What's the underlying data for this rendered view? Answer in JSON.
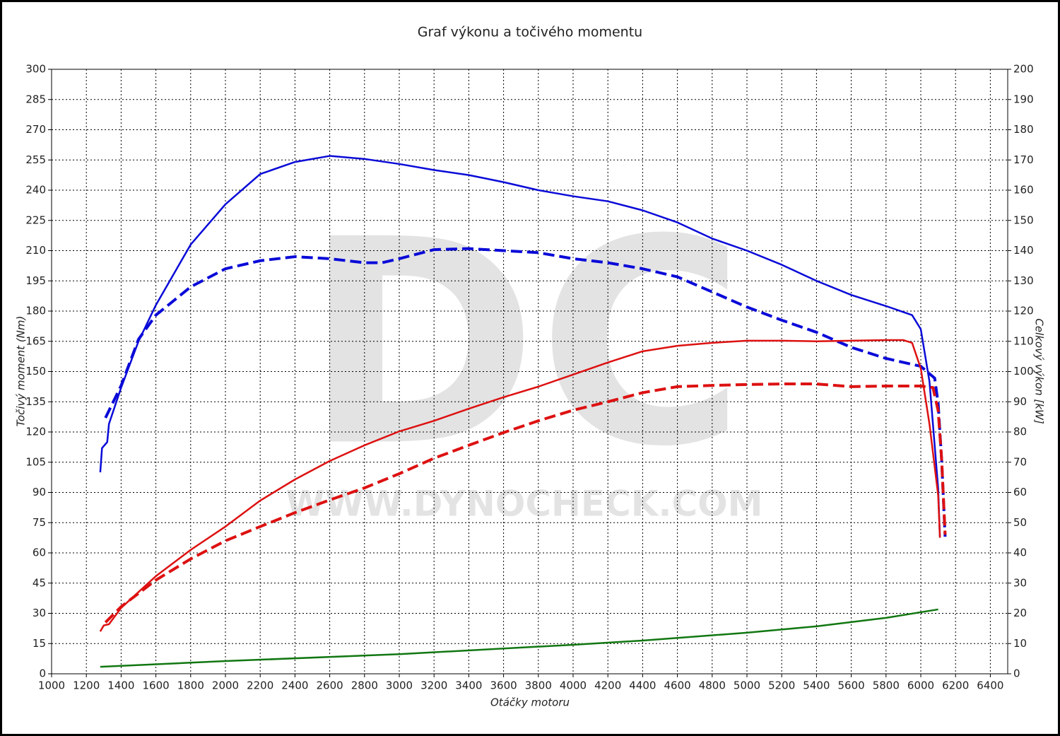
{
  "chart_data": {
    "type": "line",
    "title": "Graf výkonu a točivého momentu",
    "x_label": "Otáčky motoru",
    "y_label": "Točivý moment (Nm)",
    "y2_label": "Celkový výkon [kW]",
    "watermark": "DC",
    "watermark_url": "WWW.DYNOCHECK.COM",
    "xlim": [
      1000,
      6500
    ],
    "xticks": [
      1000,
      1200,
      1400,
      1600,
      1800,
      2000,
      2200,
      2400,
      2600,
      2800,
      3000,
      3200,
      3400,
      3600,
      3800,
      4000,
      4200,
      4400,
      4600,
      4800,
      5000,
      5200,
      5400,
      5600,
      5800,
      6000,
      6200,
      6400
    ],
    "ylim": [
      0,
      300
    ],
    "yticks": [
      0,
      15,
      30,
      45,
      60,
      75,
      90,
      105,
      120,
      135,
      150,
      165,
      180,
      195,
      210,
      225,
      240,
      255,
      270,
      285,
      300
    ],
    "y2lim": [
      0,
      200
    ],
    "y2ticks": [
      0,
      10,
      20,
      30,
      40,
      50,
      60,
      70,
      80,
      90,
      100,
      110,
      120,
      130,
      140,
      150,
      160,
      170,
      180,
      190,
      200
    ],
    "grid": true,
    "series": [
      {
        "color": "#0a0ad8",
        "style": "solid",
        "axis": "y",
        "x": [
          1280,
          1290,
          1320,
          1330,
          1400,
          1500,
          1600,
          1800,
          2000,
          2200,
          2400,
          2600,
          2800,
          3000,
          3200,
          3400,
          3600,
          3800,
          4000,
          4200,
          4400,
          4600,
          4800,
          5000,
          5200,
          5400,
          5600,
          5800,
          5950,
          6000,
          6050,
          6100,
          6110
        ],
        "values": [
          100,
          112,
          115,
          124,
          142,
          165,
          183,
          213,
          233,
          248,
          254,
          257,
          255.5,
          253,
          250,
          247.5,
          244,
          240,
          237,
          234.5,
          230,
          224,
          216,
          210,
          203,
          195,
          188,
          182.5,
          178,
          171,
          145,
          92,
          68
        ]
      },
      {
        "color": "#0a0ad8",
        "style": "dashed",
        "axis": "y",
        "x": [
          1310,
          1400,
          1500,
          1600,
          1800,
          2000,
          2200,
          2400,
          2600,
          2800,
          2900,
          3000,
          3200,
          3400,
          3600,
          3800,
          4000,
          4200,
          4400,
          4600,
          4800,
          5000,
          5200,
          5400,
          5600,
          5800,
          6000,
          6080,
          6100,
          6120,
          6140
        ],
        "values": [
          127,
          143,
          166,
          178,
          192,
          201,
          205,
          207,
          206,
          204,
          204,
          206,
          210.5,
          211,
          210,
          209,
          206,
          204,
          201,
          197,
          189.5,
          182,
          175.5,
          169.5,
          162,
          156.5,
          152.6,
          146.7,
          134,
          106,
          68
        ]
      },
      {
        "color": "#dd1111",
        "style": "solid",
        "axis": "y2",
        "x": [
          1280,
          1300,
          1330,
          1400,
          1600,
          1800,
          2000,
          2200,
          2400,
          2600,
          2800,
          3000,
          3200,
          3400,
          3600,
          3800,
          4000,
          4200,
          4400,
          4600,
          4800,
          5000,
          5200,
          5400,
          5600,
          5800,
          5900,
          5950,
          6000,
          6050,
          6100,
          6110
        ],
        "values": [
          14,
          16,
          16.4,
          21.8,
          32.3,
          41,
          48.7,
          57.3,
          64.3,
          70.4,
          75.6,
          80.2,
          83.7,
          87.7,
          91.5,
          95,
          99,
          103,
          106.7,
          108.5,
          109.5,
          110.2,
          110.2,
          110,
          110.2,
          110.4,
          110.4,
          109.5,
          101,
          82.6,
          59,
          45
        ]
      },
      {
        "color": "#dd1111",
        "style": "dashed",
        "axis": "y2",
        "x": [
          1310,
          1400,
          1600,
          1800,
          2000,
          2200,
          2400,
          2600,
          2800,
          3000,
          3200,
          3400,
          3600,
          3800,
          4000,
          4200,
          4400,
          4600,
          4800,
          5000,
          5200,
          5400,
          5600,
          5800,
          6000,
          6070,
          6100,
          6120,
          6140
        ],
        "values": [
          17,
          22.2,
          31,
          38,
          44,
          48.7,
          53.3,
          57.5,
          61.5,
          66.2,
          71.3,
          75.6,
          79.8,
          83.7,
          87.2,
          90,
          93,
          95,
          95.4,
          95.7,
          95.9,
          95.9,
          95,
          95.2,
          95.2,
          94.7,
          87,
          71,
          46
        ]
      },
      {
        "color": "#117711",
        "style": "solid",
        "axis": "y2",
        "x": [
          1280,
          2000,
          3000,
          4000,
          4400,
          5000,
          5400,
          5800,
          6100
        ],
        "values": [
          2.3,
          4.2,
          6.5,
          9.6,
          11,
          13.6,
          15.7,
          18.5,
          21.3
        ]
      }
    ]
  }
}
